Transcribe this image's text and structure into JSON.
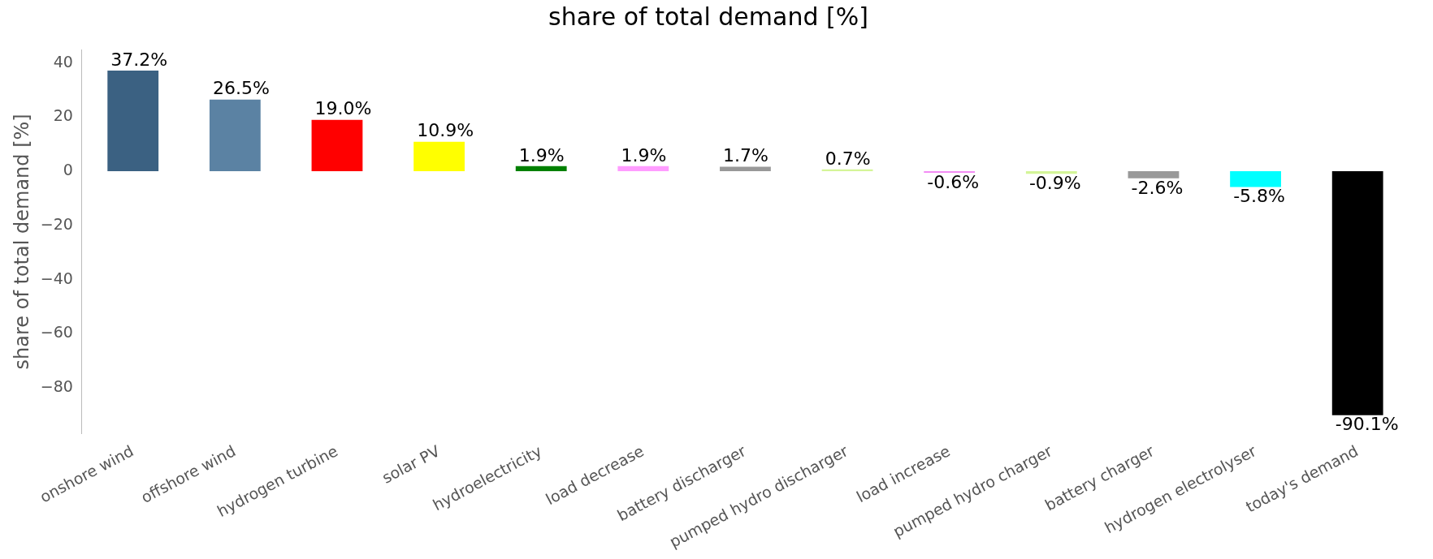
{
  "chart_data": {
    "type": "bar",
    "title": "share of total demand [%]",
    "ylabel": "share of total demand [%]",
    "categories": [
      "onshore wind",
      "offshore wind",
      "hydrogen turbine",
      "solar PV",
      "hydroelectricity",
      "load decrease",
      "battery discharger",
      "pumped hydro discharger",
      "load increase",
      "pumped hydro charger",
      "battery charger",
      "hydrogen electrolyser",
      "today's demand"
    ],
    "values": [
      37.2,
      26.5,
      19.0,
      10.9,
      1.9,
      1.9,
      1.7,
      0.7,
      -0.6,
      -0.9,
      -2.6,
      -5.8,
      -90.1
    ],
    "colors": [
      "#3b6182",
      "#5b82a3",
      "#ff0000",
      "#ffff00",
      "#008000",
      "#ff9cff",
      "#999999",
      "#d4f598",
      "#f38cf4",
      "#d4f598",
      "#999999",
      "#00ffff",
      "#000000"
    ],
    "value_labels": [
      "37.2%",
      "26.5%",
      "19.0%",
      "10.9%",
      "1.9%",
      "1.9%",
      "1.7%",
      "0.7%",
      "-0.6%",
      "-0.9%",
      "-2.6%",
      "-5.8%",
      "-90.1%"
    ],
    "ylim": [
      -97,
      45
    ],
    "yticks": [
      {
        "value": 40,
        "label": "40"
      },
      {
        "value": 20,
        "label": "20"
      },
      {
        "value": 0,
        "label": "0"
      },
      {
        "value": -20,
        "label": "−20"
      },
      {
        "value": -40,
        "label": "−40"
      },
      {
        "value": -60,
        "label": "−60"
      },
      {
        "value": -80,
        "label": "−80"
      }
    ],
    "grid": false,
    "legend": false
  }
}
